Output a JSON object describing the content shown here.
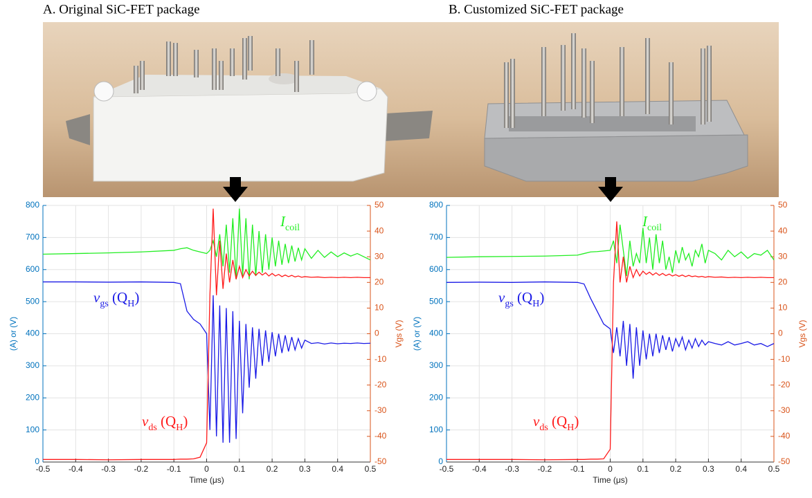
{
  "chart_data": [
    {
      "type": "line",
      "title": "A. Original SiC-FET package",
      "xlabel": "Time (μs)",
      "ylabel": "(A) or (V)",
      "y2label": "Vgs (V)",
      "xlim": [
        -0.5,
        0.5
      ],
      "xticks": [
        -0.5,
        -0.4,
        -0.3,
        -0.2,
        -0.1,
        0,
        0.1,
        0.2,
        0.3,
        0.4,
        0.5
      ],
      "ylim": [
        0,
        800
      ],
      "yticks": [
        0,
        100,
        200,
        300,
        400,
        500,
        600,
        700,
        800
      ],
      "y2lim": [
        -50,
        50
      ],
      "y2ticks": [
        -50,
        -40,
        -30,
        -20,
        -10,
        0,
        10,
        20,
        30,
        40,
        50
      ],
      "grid": true,
      "x": [
        -0.5,
        -0.4,
        -0.3,
        -0.2,
        -0.1,
        -0.08,
        -0.06,
        -0.04,
        -0.02,
        0,
        0.01,
        0.02,
        0.03,
        0.04,
        0.05,
        0.06,
        0.07,
        0.08,
        0.09,
        0.1,
        0.11,
        0.12,
        0.13,
        0.14,
        0.15,
        0.16,
        0.17,
        0.18,
        0.19,
        0.2,
        0.21,
        0.22,
        0.23,
        0.24,
        0.25,
        0.26,
        0.27,
        0.28,
        0.29,
        0.3,
        0.32,
        0.34,
        0.36,
        0.38,
        0.4,
        0.42,
        0.44,
        0.46,
        0.48,
        0.5
      ],
      "series": [
        {
          "color": "#22ee22",
          "values": [
            648,
            650,
            652,
            655,
            660,
            665,
            668,
            660,
            655,
            650,
            660,
            690,
            640,
            710,
            610,
            740,
            590,
            760,
            570,
            790,
            580,
            760,
            570,
            740,
            580,
            720,
            590,
            710,
            600,
            700,
            610,
            690,
            615,
            680,
            620,
            675,
            625,
            668,
            630,
            665,
            635,
            660,
            638,
            655,
            640,
            652,
            642,
            650,
            640,
            630
          ]
        },
        {
          "color": "#1a1ae6",
          "axis": "y2",
          "values": [
            20.2,
            20.2,
            20.1,
            20.2,
            20.0,
            19.5,
            8.8,
            5.6,
            3.8,
            0,
            -37.5,
            15,
            -40,
            11,
            -42.5,
            10,
            -42.5,
            8.8,
            -41,
            5,
            -31,
            3.8,
            -21,
            2.5,
            -17.5,
            1.9,
            -12.5,
            1.3,
            -11,
            0.6,
            -8.8,
            0,
            -7.5,
            -0.6,
            -6.9,
            -1.3,
            -6.3,
            -1.9,
            -5.6,
            -2.5,
            -3.8,
            -3.5,
            -4.0,
            -3.6,
            -3.9,
            -3.7,
            -3.8,
            -3.6,
            -3.8,
            -3.7
          ]
        },
        {
          "color": "#ff1a1a",
          "values": [
            8,
            8,
            7,
            8,
            8,
            9,
            9,
            10,
            15,
            60,
            520,
            790,
            520,
            690,
            540,
            650,
            560,
            630,
            570,
            610,
            575,
            600,
            580,
            595,
            582,
            592,
            583,
            590,
            580,
            588,
            580,
            585,
            578,
            583,
            578,
            582,
            577,
            580,
            576,
            578,
            576,
            577,
            575,
            576,
            575,
            576,
            575,
            576,
            575,
            575
          ]
        }
      ],
      "annotations": [
        {
          "parts": [
            "I",
            "coil"
          ],
          "color": "#22ee22"
        },
        {
          "parts": [
            "v",
            "gs",
            " (Q",
            "H",
            ")"
          ],
          "color": "#1a1ae6"
        },
        {
          "parts": [
            "v",
            "ds",
            " (Q",
            "H",
            ")"
          ],
          "color": "#ff1a1a"
        }
      ]
    },
    {
      "type": "line",
      "title": "B. Customized SiC-FET package",
      "xlabel": "Time (μs)",
      "ylabel": "(A) or (V)",
      "y2label": "Vgs (V)",
      "xlim": [
        -0.5,
        0.5
      ],
      "xticks": [
        -0.5,
        -0.4,
        -0.3,
        -0.2,
        -0.1,
        0,
        0.1,
        0.2,
        0.3,
        0.4,
        0.5
      ],
      "ylim": [
        0,
        800
      ],
      "yticks": [
        0,
        100,
        200,
        300,
        400,
        500,
        600,
        700,
        800
      ],
      "y2lim": [
        -50,
        50
      ],
      "y2ticks": [
        -50,
        -40,
        -30,
        -20,
        -10,
        0,
        10,
        20,
        30,
        40,
        50
      ],
      "grid": true,
      "x": [
        -0.5,
        -0.4,
        -0.3,
        -0.2,
        -0.1,
        -0.08,
        -0.06,
        -0.04,
        -0.02,
        0,
        0.01,
        0.02,
        0.03,
        0.04,
        0.05,
        0.06,
        0.07,
        0.08,
        0.09,
        0.1,
        0.11,
        0.12,
        0.13,
        0.14,
        0.15,
        0.16,
        0.17,
        0.18,
        0.19,
        0.2,
        0.21,
        0.22,
        0.23,
        0.24,
        0.25,
        0.26,
        0.27,
        0.28,
        0.29,
        0.3,
        0.32,
        0.34,
        0.36,
        0.38,
        0.4,
        0.42,
        0.44,
        0.46,
        0.48,
        0.5
      ],
      "series": [
        {
          "color": "#22ee22",
          "values": [
            638,
            640,
            641,
            642,
            645,
            650,
            655,
            656,
            658,
            660,
            690,
            620,
            740,
            660,
            580,
            690,
            610,
            650,
            620,
            730,
            620,
            700,
            600,
            710,
            620,
            690,
            600,
            640,
            590,
            660,
            620,
            670,
            630,
            650,
            610,
            660,
            640,
            680,
            620,
            660,
            650,
            630,
            660,
            640,
            655,
            635,
            650,
            645,
            660,
            630
          ]
        },
        {
          "color": "#1a1ae6",
          "axis": "y2",
          "values": [
            20,
            20.1,
            20,
            20.2,
            20,
            19.4,
            13.8,
            8.8,
            3.8,
            1.9,
            -7.5,
            2.5,
            -8.8,
            5,
            -12.5,
            3.8,
            -17.5,
            2.5,
            -12.5,
            1.3,
            -10,
            0,
            -8.8,
            0,
            -7.5,
            -0.6,
            -6.3,
            -1.3,
            -6.9,
            -1.9,
            -5,
            -1.3,
            -6.3,
            -2.5,
            -5.6,
            -1.9,
            -5,
            -2.5,
            -4.4,
            -3.1,
            -3.8,
            -4.4,
            -3.1,
            -4.4,
            -3.8,
            -3.1,
            -4.4,
            -3.8,
            -5,
            -3.8
          ]
        },
        {
          "color": "#ff1a1a",
          "values": [
            8,
            8,
            8,
            7,
            8,
            8,
            9,
            9,
            10,
            40,
            560,
            750,
            560,
            640,
            560,
            610,
            575,
            600,
            580,
            595,
            585,
            592,
            583,
            590,
            582,
            588,
            581,
            586,
            580,
            584,
            579,
            583,
            578,
            582,
            578,
            580,
            577,
            579,
            576,
            578,
            576,
            577,
            575,
            576,
            575,
            576,
            575,
            576,
            575,
            575
          ]
        }
      ],
      "annotations": [
        {
          "parts": [
            "I",
            "coil"
          ],
          "color": "#22ee22"
        },
        {
          "parts": [
            "v",
            "gs",
            " (Q",
            "H",
            ")"
          ],
          "color": "#1a1ae6"
        },
        {
          "parts": [
            "v",
            "ds",
            " (Q",
            "H",
            ")"
          ],
          "color": "#ff1a1a"
        }
      ]
    }
  ]
}
